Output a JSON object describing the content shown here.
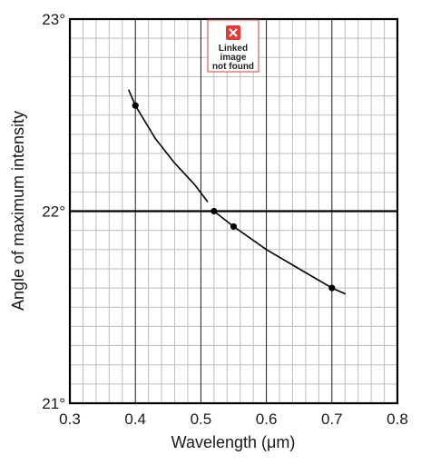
{
  "chart_data": {
    "type": "scatter",
    "xlabel": "Wavelength  (μm)",
    "ylabel": "Angle of maximum intensity",
    "xlim": [
      0.3,
      0.8
    ],
    "ylim": [
      21,
      23
    ],
    "x_ticks": [
      "0.3",
      "0.4",
      "0.5",
      "0.6",
      "0.7",
      "0.8"
    ],
    "y_ticks": [
      "21°",
      "22°",
      "23°"
    ],
    "grid": true,
    "reference_line_y": 22,
    "series": [
      {
        "points": [
          {
            "x": 0.4,
            "y": 22.55
          },
          {
            "x": 0.52,
            "y": 22.0
          },
          {
            "x": 0.55,
            "y": 21.92
          },
          {
            "x": 0.7,
            "y": 21.6
          }
        ]
      }
    ],
    "curves": [
      [
        [
          0.39,
          22.63
        ],
        [
          0.4,
          22.55
        ],
        [
          0.43,
          22.38
        ],
        [
          0.46,
          22.25
        ],
        [
          0.49,
          22.14
        ],
        [
          0.51,
          22.05
        ]
      ],
      [
        [
          0.52,
          22.0
        ],
        [
          0.55,
          21.92
        ],
        [
          0.6,
          21.8
        ],
        [
          0.65,
          21.7
        ],
        [
          0.7,
          21.6
        ],
        [
          0.72,
          21.57
        ]
      ]
    ],
    "colors": {
      "grid_minor": "#bdbdbd",
      "grid_major": "#1a1a1a",
      "curve": "#000000",
      "point": "#000000"
    }
  },
  "broken_image": {
    "text_lines": [
      "Linked",
      "image",
      "not found"
    ],
    "icon": "broken-image-x-icon",
    "color": "#e53935"
  }
}
